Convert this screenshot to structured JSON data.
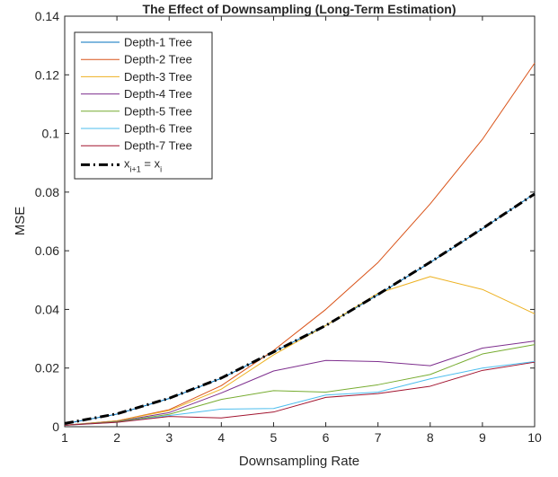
{
  "chart_data": {
    "type": "line",
    "title": "The Effect of Downsampling (Long-Term Estimation)",
    "xlabel": "Downsampling Rate",
    "ylabel": "MSE",
    "xlim": [
      1,
      10
    ],
    "ylim": [
      0,
      0.14
    ],
    "xticks": [
      "1",
      "2",
      "3",
      "4",
      "5",
      "6",
      "7",
      "8",
      "9",
      "10"
    ],
    "yticks": [
      "0",
      "0.02",
      "0.04",
      "0.06",
      "0.08",
      "0.1",
      "0.12",
      "0.14"
    ],
    "grid": false,
    "legend_position": "top-left",
    "x": [
      1,
      2,
      3,
      4,
      5,
      6,
      7,
      8,
      9,
      10
    ],
    "series": [
      {
        "name": "Depth-1 Tree",
        "color": "#0072BD",
        "values": [
          0.001,
          0.0043,
          0.0096,
          0.0165,
          0.0255,
          0.0345,
          0.045,
          0.056,
          0.0675,
          0.0795
        ]
      },
      {
        "name": "Depth-2 Tree",
        "color": "#D95319",
        "values": [
          0.0005,
          0.002,
          0.0058,
          0.014,
          0.026,
          0.04,
          0.056,
          0.076,
          0.098,
          0.124
        ]
      },
      {
        "name": "Depth-3 Tree",
        "color": "#EDB120",
        "values": [
          0.0005,
          0.002,
          0.0055,
          0.0128,
          0.0245,
          0.0345,
          0.0455,
          0.0512,
          0.0468,
          0.0385
        ]
      },
      {
        "name": "Depth-4 Tree",
        "color": "#7E2F8E",
        "values": [
          0.0005,
          0.0018,
          0.0048,
          0.0115,
          0.019,
          0.0226,
          0.0222,
          0.0208,
          0.0268,
          0.0292
        ]
      },
      {
        "name": "Depth-5 Tree",
        "color": "#77AC30",
        "values": [
          0.0005,
          0.0017,
          0.0042,
          0.0093,
          0.0123,
          0.0118,
          0.0143,
          0.0178,
          0.0248,
          0.028
        ]
      },
      {
        "name": "Depth-6 Tree",
        "color": "#4DBEEE",
        "values": [
          0.0005,
          0.0015,
          0.0038,
          0.006,
          0.0062,
          0.0108,
          0.0118,
          0.0163,
          0.02,
          0.0222
        ]
      },
      {
        "name": "Depth-7 Tree",
        "color": "#A2142F",
        "values": [
          0.0005,
          0.0015,
          0.0035,
          0.003,
          0.005,
          0.01,
          0.0113,
          0.0138,
          0.0192,
          0.022
        ]
      },
      {
        "name": "x_{i+1} = x_i",
        "color": "#000000",
        "dashed": true,
        "values": [
          0.0011,
          0.0044,
          0.0097,
          0.0166,
          0.0255,
          0.0345,
          0.0451,
          0.0561,
          0.0676,
          0.0794
        ]
      }
    ]
  },
  "legend": {
    "identity_label": {
      "main_1": "x",
      "sub_1": "i+1",
      "middle": " = x",
      "sub_2": "i"
    }
  }
}
